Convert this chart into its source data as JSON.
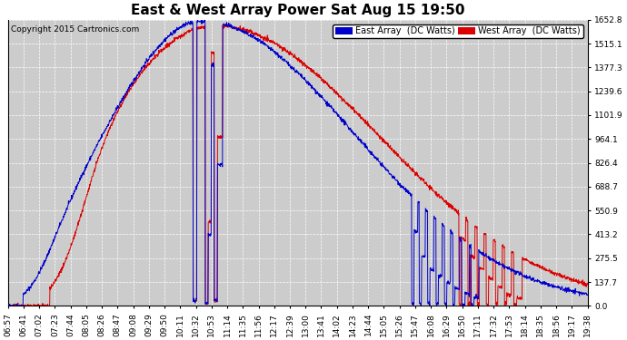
{
  "title": "East & West Array Power Sat Aug 15 19:50",
  "copyright": "Copyright 2015 Cartronics.com",
  "east_label": "East Array  (DC Watts)",
  "west_label": "West Array  (DC Watts)",
  "east_color": "#0000cc",
  "west_color": "#dd0000",
  "bg_color": "#ffffff",
  "plot_bg_color": "#cccccc",
  "grid_color": "#ffffff",
  "yticks": [
    0.0,
    137.7,
    275.5,
    413.2,
    550.9,
    688.7,
    826.4,
    964.1,
    1101.9,
    1239.6,
    1377.3,
    1515.1,
    1652.8
  ],
  "ylim": [
    0,
    1652.8
  ],
  "x_labels": [
    "06:57",
    "06:41",
    "07:02",
    "07:23",
    "07:44",
    "08:05",
    "08:26",
    "08:47",
    "09:08",
    "09:29",
    "09:50",
    "10:11",
    "10:32",
    "10:53",
    "11:14",
    "11:35",
    "11:56",
    "12:17",
    "12:39",
    "13:00",
    "13:41",
    "14:02",
    "14:23",
    "14:44",
    "15:05",
    "15:26",
    "15:47",
    "16:08",
    "16:29",
    "16:50",
    "17:11",
    "17:32",
    "17:53",
    "18:14",
    "18:35",
    "18:56",
    "19:17",
    "19:38"
  ],
  "peak_power": 1652.8,
  "title_fontsize": 11,
  "legend_fontsize": 7,
  "tick_fontsize": 6.5,
  "copyright_fontsize": 6.5
}
